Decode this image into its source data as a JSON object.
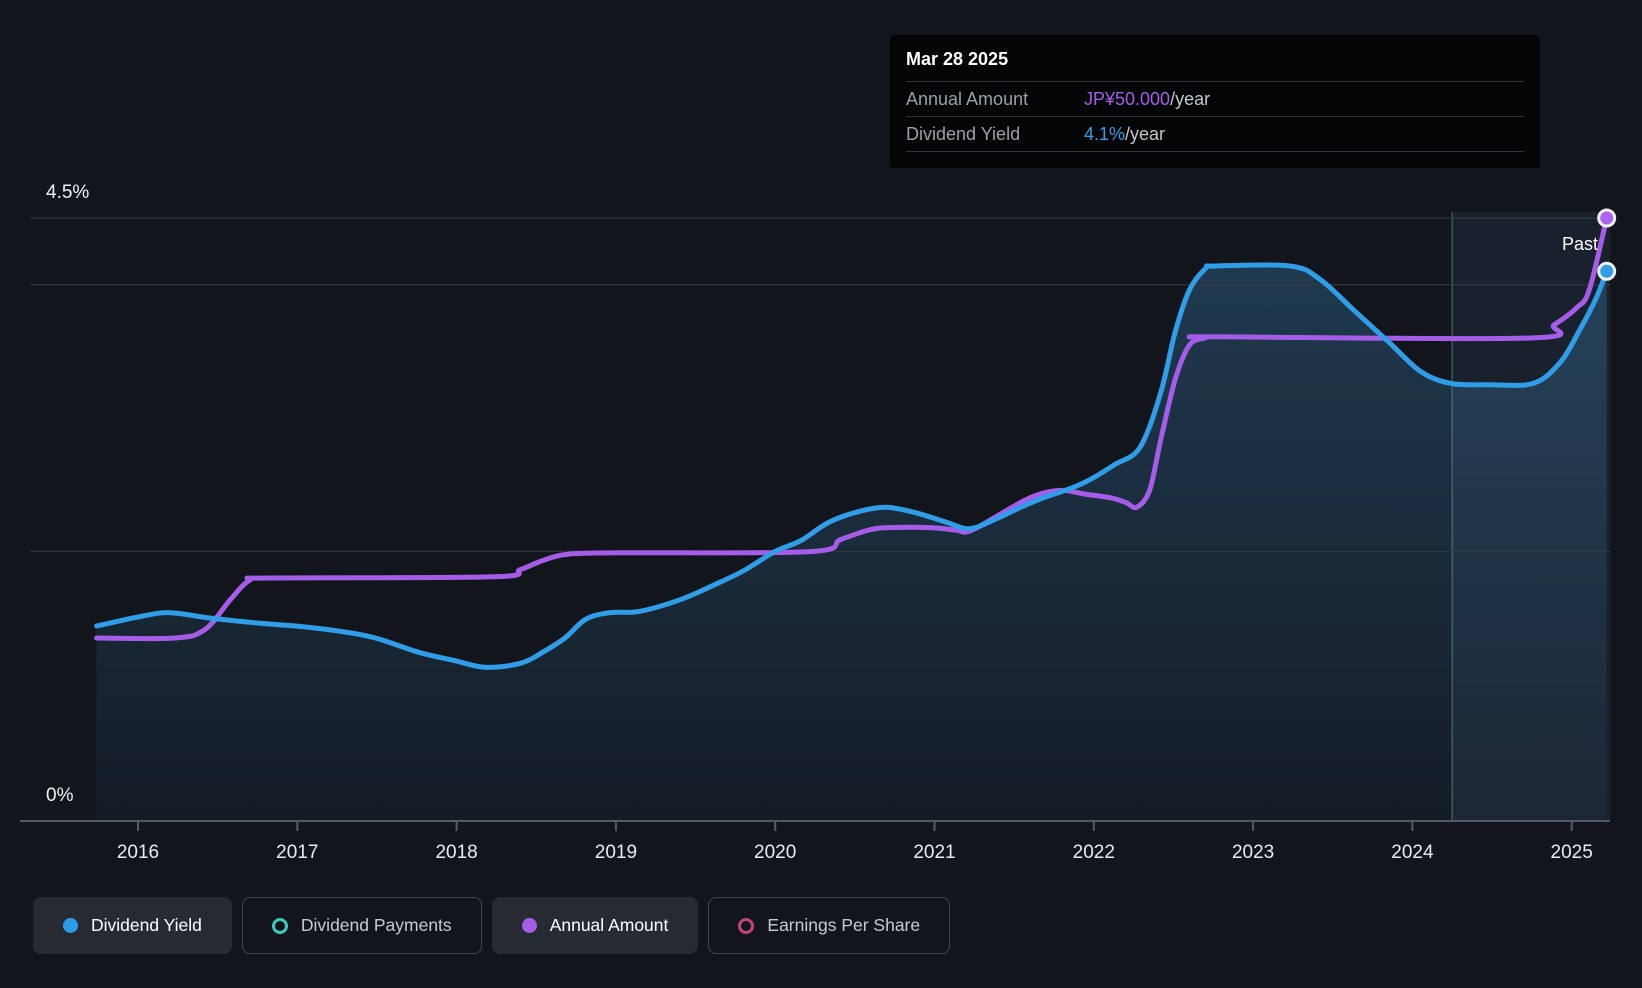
{
  "tooltip": {
    "date": "Mar 28 2025",
    "rows": [
      {
        "label": "Annual Amount",
        "value": "JP¥50.000",
        "suffix": "/year",
        "color": "#a55ce8"
      },
      {
        "label": "Dividend Yield",
        "value": "4.1%",
        "suffix": "/year",
        "color": "#2f9de8"
      }
    ]
  },
  "past_label": "Past",
  "axis": {
    "y_top_label": "4.5%",
    "y_bottom_label": "0%",
    "x_ticks": [
      "2016",
      "2017",
      "2018",
      "2019",
      "2020",
      "2021",
      "2022",
      "2023",
      "2024",
      "2025"
    ]
  },
  "legend": [
    {
      "label": "Dividend Yield",
      "marker": "filled",
      "color": "#2d9ce8",
      "active": true
    },
    {
      "label": "Dividend Payments",
      "marker": "ring",
      "color": "#41c8bc",
      "active": false
    },
    {
      "label": "Annual Amount",
      "marker": "filled",
      "color": "#a55ce8",
      "active": true
    },
    {
      "label": "Earnings Per Share",
      "marker": "ring",
      "color": "#c2447e",
      "active": false
    }
  ],
  "chart_data": {
    "type": "line",
    "x_axis": {
      "ticks": [
        2016,
        2017,
        2018,
        2019,
        2020,
        2021,
        2022,
        2023,
        2024,
        2025
      ],
      "range": [
        2015.73,
        2025.35
      ]
    },
    "y_axis": {
      "unit": "%",
      "range": [
        0,
        4.5
      ],
      "gridlines_pct": [
        4.5,
        4.0,
        2.0
      ],
      "labeled": [
        "4.5%",
        "0%"
      ]
    },
    "past_divider_year": 2024.25,
    "grid": "partial-horizontal",
    "legend_position": "bottom",
    "series": [
      {
        "name": "Dividend Yield",
        "unit": "%",
        "color": "#2f9de8",
        "style": "line-with-area",
        "end_label": "4.1%/year",
        "points": [
          [
            2015.74,
            1.44
          ],
          [
            2016.01,
            1.51
          ],
          [
            2016.2,
            1.54
          ],
          [
            2016.45,
            1.5
          ],
          [
            2016.77,
            1.46
          ],
          [
            2016.99,
            1.44
          ],
          [
            2017.27,
            1.4
          ],
          [
            2017.49,
            1.35
          ],
          [
            2017.77,
            1.24
          ],
          [
            2017.99,
            1.18
          ],
          [
            2018.18,
            1.13
          ],
          [
            2018.4,
            1.16
          ],
          [
            2018.55,
            1.25
          ],
          [
            2018.68,
            1.35
          ],
          [
            2018.81,
            1.49
          ],
          [
            2018.96,
            1.54
          ],
          [
            2019.15,
            1.55
          ],
          [
            2019.41,
            1.64
          ],
          [
            2019.62,
            1.75
          ],
          [
            2019.81,
            1.86
          ],
          [
            2020.0,
            2.0
          ],
          [
            2020.16,
            2.08
          ],
          [
            2020.34,
            2.22
          ],
          [
            2020.53,
            2.3
          ],
          [
            2020.7,
            2.33
          ],
          [
            2020.88,
            2.29
          ],
          [
            2021.07,
            2.22
          ],
          [
            2021.22,
            2.17
          ],
          [
            2021.38,
            2.24
          ],
          [
            2021.54,
            2.33
          ],
          [
            2021.68,
            2.4
          ],
          [
            2021.85,
            2.47
          ],
          [
            2021.98,
            2.54
          ],
          [
            2022.13,
            2.65
          ],
          [
            2022.29,
            2.78
          ],
          [
            2022.42,
            3.19
          ],
          [
            2022.51,
            3.64
          ],
          [
            2022.6,
            3.96
          ],
          [
            2022.7,
            4.12
          ],
          [
            2022.76,
            4.14
          ],
          [
            2023.23,
            4.14
          ],
          [
            2023.42,
            4.04
          ],
          [
            2023.64,
            3.8
          ],
          [
            2023.86,
            3.56
          ],
          [
            2024.05,
            3.35
          ],
          [
            2024.24,
            3.26
          ],
          [
            2024.49,
            3.25
          ],
          [
            2024.76,
            3.26
          ],
          [
            2024.93,
            3.42
          ],
          [
            2025.05,
            3.66
          ],
          [
            2025.15,
            3.89
          ],
          [
            2025.22,
            4.1
          ]
        ]
      },
      {
        "name": "Annual Amount",
        "unit": "JP¥/year",
        "color": "#a55ce8",
        "style": "line",
        "end_label": "JP¥50.000/year",
        "points": [
          [
            2015.74,
            15.0
          ],
          [
            2016.23,
            15.0
          ],
          [
            2016.42,
            15.7
          ],
          [
            2016.58,
            18.2
          ],
          [
            2016.7,
            19.8
          ],
          [
            2016.83,
            20.0
          ],
          [
            2018.23,
            20.1
          ],
          [
            2018.4,
            20.7
          ],
          [
            2018.55,
            21.5
          ],
          [
            2018.71,
            22.0
          ],
          [
            2019.03,
            22.1
          ],
          [
            2020.22,
            22.2
          ],
          [
            2020.41,
            23.2
          ],
          [
            2020.59,
            24.0
          ],
          [
            2020.72,
            24.2
          ],
          [
            2020.97,
            24.2
          ],
          [
            2021.13,
            24.0
          ],
          [
            2021.22,
            23.9
          ],
          [
            2021.41,
            25.3
          ],
          [
            2021.57,
            26.5
          ],
          [
            2021.69,
            27.1
          ],
          [
            2021.81,
            27.3
          ],
          [
            2021.94,
            27.0
          ],
          [
            2022.1,
            26.7
          ],
          [
            2022.2,
            26.3
          ],
          [
            2022.27,
            25.9
          ],
          [
            2022.35,
            27.3
          ],
          [
            2022.42,
            31.5
          ],
          [
            2022.51,
            36.5
          ],
          [
            2022.6,
            39.4
          ],
          [
            2022.7,
            40.0
          ],
          [
            2022.76,
            40.1
          ],
          [
            2024.74,
            40.0
          ],
          [
            2024.89,
            41.1
          ],
          [
            2025.03,
            42.5
          ],
          [
            2025.11,
            44.0
          ],
          [
            2025.22,
            50.0
          ]
        ]
      }
    ]
  }
}
